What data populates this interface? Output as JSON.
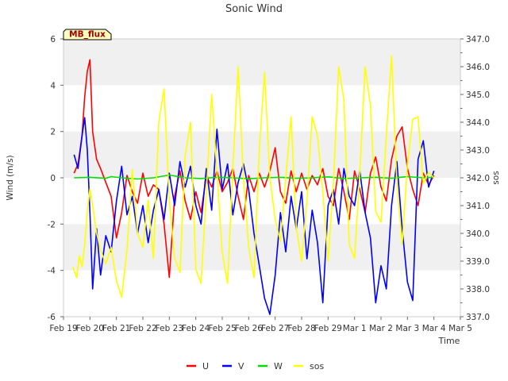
{
  "chart_data": {
    "type": "line",
    "title": "Sonic Wind",
    "badge": "MB_flux",
    "xlabel": "Time",
    "ylabel_left": "Wind (m/s)",
    "ylabel_right": "sos",
    "x_ticks": [
      "Feb 19",
      "Feb 20",
      "Feb 21",
      "Feb 22",
      "Feb 23",
      "Feb 24",
      "Feb 25",
      "Feb 26",
      "Feb 27",
      "Feb 28",
      "Feb 29",
      "Mar 1",
      "Mar 2",
      "Mar 3",
      "Mar 4",
      "Mar 5"
    ],
    "xlim": [
      0,
      15
    ],
    "ylim_left": [
      -6,
      6
    ],
    "y_ticks_left": [
      "-6",
      "-4",
      "-2",
      "0",
      "2",
      "4",
      "6"
    ],
    "ylim_right": [
      337.0,
      347.0
    ],
    "y_ticks_right": [
      "337.0",
      "338.0",
      "339.0",
      "340.0",
      "341.0",
      "342.0",
      "343.0",
      "344.0",
      "345.0",
      "346.0",
      "347.0"
    ],
    "grid_bands": true,
    "legend_position": "bottom-center",
    "series": [
      {
        "name": "U",
        "color": "#ff0000",
        "axis": "left",
        "x": [
          0.4,
          0.55,
          0.7,
          0.8,
          0.9,
          1.0,
          1.1,
          1.25,
          1.4,
          1.6,
          1.8,
          2.0,
          2.2,
          2.4,
          2.6,
          2.8,
          3.0,
          3.2,
          3.4,
          3.6,
          3.8,
          4.0,
          4.2,
          4.4,
          4.6,
          4.8,
          5.0,
          5.2,
          5.4,
          5.6,
          5.8,
          6.0,
          6.2,
          6.4,
          6.6,
          6.8,
          7.0,
          7.2,
          7.4,
          7.6,
          7.8,
          8.0,
          8.2,
          8.4,
          8.6,
          8.8,
          9.0,
          9.2,
          9.4,
          9.6,
          9.8,
          10.0,
          10.2,
          10.4,
          10.6,
          10.8,
          11.0,
          11.2,
          11.4,
          11.6,
          11.8,
          12.0,
          12.2,
          12.4,
          12.6,
          12.8,
          13.0,
          13.2,
          13.4,
          13.6,
          13.8,
          14.0
        ],
        "values": [
          0.2,
          0.6,
          1.8,
          3.5,
          4.6,
          5.1,
          2.0,
          0.8,
          0.4,
          -0.2,
          -0.8,
          -2.6,
          -1.5,
          0.1,
          -0.6,
          -1.1,
          0.2,
          -0.8,
          -0.3,
          -0.5,
          -2.0,
          -4.3,
          -0.8,
          0.3,
          -1.0,
          -1.8,
          -0.6,
          -1.5,
          0.1,
          -0.4,
          0.3,
          -0.6,
          -0.2,
          0.4,
          -0.8,
          -1.8,
          0.1,
          -0.6,
          0.2,
          -0.4,
          0.3,
          1.3,
          -0.6,
          -1.1,
          0.3,
          -0.6,
          0.2,
          -0.5,
          0.1,
          -0.3,
          0.4,
          -0.8,
          -1.2,
          0.4,
          -0.6,
          -1.8,
          0.3,
          -0.5,
          -1.5,
          0.2,
          0.9,
          -0.4,
          -1.0,
          0.8,
          1.8,
          2.2,
          0.4,
          -0.5,
          -1.2,
          0.2,
          -0.3,
          0.1
        ]
      },
      {
        "name": "V",
        "color": "#0000ff",
        "axis": "left",
        "x": [
          0.4,
          0.55,
          0.7,
          0.8,
          0.9,
          1.0,
          1.1,
          1.25,
          1.4,
          1.6,
          1.8,
          2.0,
          2.2,
          2.4,
          2.6,
          2.8,
          3.0,
          3.2,
          3.4,
          3.6,
          3.8,
          4.0,
          4.2,
          4.4,
          4.6,
          4.8,
          5.0,
          5.2,
          5.4,
          5.6,
          5.8,
          6.0,
          6.2,
          6.4,
          6.6,
          6.8,
          7.0,
          7.2,
          7.4,
          7.6,
          7.8,
          8.0,
          8.2,
          8.4,
          8.6,
          8.8,
          9.0,
          9.2,
          9.4,
          9.6,
          9.8,
          10.0,
          10.2,
          10.4,
          10.6,
          10.8,
          11.0,
          11.2,
          11.4,
          11.6,
          11.8,
          12.0,
          12.2,
          12.4,
          12.6,
          12.8,
          13.0,
          13.2,
          13.4,
          13.6,
          13.8,
          14.0
        ],
        "values": [
          1.0,
          0.4,
          1.8,
          2.6,
          1.2,
          -1.5,
          -4.8,
          -2.2,
          -4.2,
          -2.5,
          -3.2,
          -1.0,
          0.5,
          -1.6,
          -0.8,
          -2.4,
          -1.2,
          -2.8,
          -1.4,
          -0.5,
          -1.8,
          0.2,
          -1.2,
          0.7,
          -0.4,
          0.5,
          -1.2,
          -2.0,
          0.4,
          -1.4,
          2.1,
          -0.5,
          0.6,
          -1.6,
          -0.2,
          0.6,
          -0.5,
          -2.4,
          -3.8,
          -5.2,
          -5.9,
          -4.2,
          -1.5,
          -3.2,
          -0.8,
          -2.2,
          -0.6,
          -3.5,
          -1.4,
          -2.8,
          -5.4,
          -1.2,
          -0.5,
          -2.0,
          0.4,
          -0.8,
          -1.2,
          0.3,
          -1.5,
          -2.6,
          -5.4,
          -3.8,
          -4.8,
          -1.2,
          0.7,
          -2.2,
          -4.5,
          -5.3,
          0.8,
          1.6,
          -0.4,
          0.3
        ]
      },
      {
        "name": "W",
        "color": "#00dd00",
        "axis": "left",
        "x": [
          0.4,
          1.0,
          1.6,
          1.8,
          2.2,
          2.8,
          3.4,
          4.0,
          4.6,
          5.2,
          5.8,
          6.4,
          7.0,
          7.6,
          8.2,
          8.8,
          9.4,
          10.0,
          10.6,
          11.2,
          11.8,
          12.4,
          13.0,
          13.6,
          14.0
        ],
        "values": [
          0.0,
          0.02,
          -0.02,
          0.05,
          0.0,
          -0.05,
          0.0,
          0.12,
          0.0,
          -0.03,
          0.02,
          0.0,
          -0.04,
          0.0,
          0.02,
          -0.02,
          0.0,
          0.04,
          -0.03,
          0.0,
          0.02,
          -0.02,
          0.05,
          0.0,
          0.02
        ]
      },
      {
        "name": "sos",
        "color": "#ffff00",
        "axis": "right",
        "x": [
          0.35,
          0.5,
          0.6,
          0.7,
          0.8,
          0.9,
          1.0,
          1.1,
          1.25,
          1.4,
          1.6,
          1.8,
          2.0,
          2.2,
          2.4,
          2.6,
          2.8,
          3.0,
          3.2,
          3.4,
          3.6,
          3.8,
          4.0,
          4.2,
          4.4,
          4.6,
          4.8,
          5.0,
          5.2,
          5.4,
          5.6,
          5.8,
          6.0,
          6.2,
          6.4,
          6.6,
          6.8,
          7.0,
          7.2,
          7.4,
          7.6,
          7.8,
          8.0,
          8.2,
          8.4,
          8.6,
          8.8,
          9.0,
          9.2,
          9.4,
          9.6,
          9.8,
          10.0,
          10.2,
          10.4,
          10.6,
          10.8,
          11.0,
          11.2,
          11.4,
          11.6,
          11.8,
          12.0,
          12.2,
          12.4,
          12.6,
          12.8,
          13.0,
          13.2,
          13.4,
          13.6,
          13.8,
          14.0
        ],
        "values": [
          338.8,
          338.4,
          339.2,
          338.8,
          339.6,
          340.8,
          341.6,
          341.0,
          340.0,
          339.4,
          338.9,
          339.5,
          338.3,
          337.7,
          339.4,
          342.3,
          340.0,
          339.5,
          341.2,
          339.1,
          344.0,
          345.2,
          341.2,
          339.1,
          338.6,
          342.8,
          344.0,
          338.7,
          338.2,
          341.5,
          345.0,
          342.2,
          339.3,
          338.2,
          342.3,
          346.0,
          342.0,
          339.5,
          338.4,
          343.0,
          345.8,
          342.0,
          340.5,
          339.7,
          342.0,
          344.2,
          340.2,
          339.0,
          341.2,
          344.2,
          343.5,
          341.5,
          339.0,
          341.8,
          346.0,
          344.8,
          339.6,
          339.1,
          342.2,
          346.0,
          344.6,
          340.8,
          340.4,
          343.5,
          346.4,
          341.8,
          339.6,
          342.5,
          344.1,
          344.2,
          341.8,
          342.2,
          342.0
        ]
      }
    ]
  }
}
